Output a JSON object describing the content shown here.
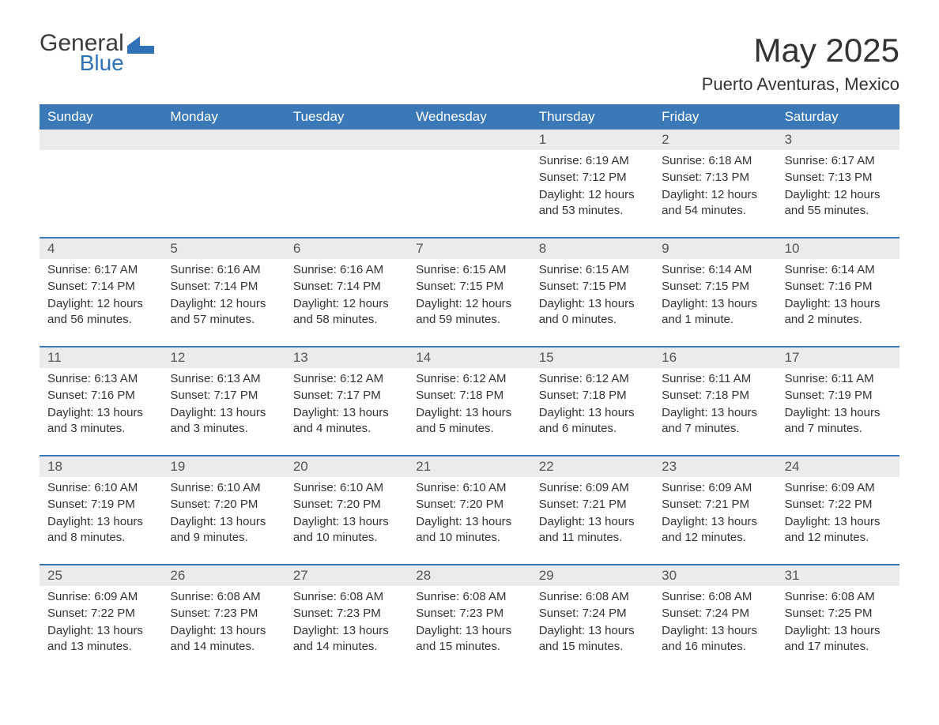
{
  "brand": {
    "word1": "General",
    "word2": "Blue",
    "word1_color": "#3b3b3b",
    "word2_color": "#2f72b8",
    "shape_color": "#2f72b8"
  },
  "title": "May 2025",
  "location": "Puerto Aventuras, Mexico",
  "colors": {
    "header_bg": "#3b78b8",
    "header_text": "#ffffff",
    "daynum_bg": "#ebebeb",
    "daynum_text": "#555555",
    "body_text": "#333333",
    "divider": "#3b78b8",
    "page_bg": "#ffffff"
  },
  "typography": {
    "title_fontsize": 42,
    "location_fontsize": 22,
    "weekday_fontsize": 17,
    "daynum_fontsize": 17,
    "detail_fontsize": 15,
    "font_family": "Arial"
  },
  "layout": {
    "type": "calendar",
    "columns": 7,
    "rows": 5
  },
  "weekdays": [
    "Sunday",
    "Monday",
    "Tuesday",
    "Wednesday",
    "Thursday",
    "Friday",
    "Saturday"
  ],
  "weeks": [
    [
      null,
      null,
      null,
      null,
      {
        "n": "1",
        "sunrise": "Sunrise: 6:19 AM",
        "sunset": "Sunset: 7:12 PM",
        "daylight": "Daylight: 12 hours and 53 minutes."
      },
      {
        "n": "2",
        "sunrise": "Sunrise: 6:18 AM",
        "sunset": "Sunset: 7:13 PM",
        "daylight": "Daylight: 12 hours and 54 minutes."
      },
      {
        "n": "3",
        "sunrise": "Sunrise: 6:17 AM",
        "sunset": "Sunset: 7:13 PM",
        "daylight": "Daylight: 12 hours and 55 minutes."
      }
    ],
    [
      {
        "n": "4",
        "sunrise": "Sunrise: 6:17 AM",
        "sunset": "Sunset: 7:14 PM",
        "daylight": "Daylight: 12 hours and 56 minutes."
      },
      {
        "n": "5",
        "sunrise": "Sunrise: 6:16 AM",
        "sunset": "Sunset: 7:14 PM",
        "daylight": "Daylight: 12 hours and 57 minutes."
      },
      {
        "n": "6",
        "sunrise": "Sunrise: 6:16 AM",
        "sunset": "Sunset: 7:14 PM",
        "daylight": "Daylight: 12 hours and 58 minutes."
      },
      {
        "n": "7",
        "sunrise": "Sunrise: 6:15 AM",
        "sunset": "Sunset: 7:15 PM",
        "daylight": "Daylight: 12 hours and 59 minutes."
      },
      {
        "n": "8",
        "sunrise": "Sunrise: 6:15 AM",
        "sunset": "Sunset: 7:15 PM",
        "daylight": "Daylight: 13 hours and 0 minutes."
      },
      {
        "n": "9",
        "sunrise": "Sunrise: 6:14 AM",
        "sunset": "Sunset: 7:15 PM",
        "daylight": "Daylight: 13 hours and 1 minute."
      },
      {
        "n": "10",
        "sunrise": "Sunrise: 6:14 AM",
        "sunset": "Sunset: 7:16 PM",
        "daylight": "Daylight: 13 hours and 2 minutes."
      }
    ],
    [
      {
        "n": "11",
        "sunrise": "Sunrise: 6:13 AM",
        "sunset": "Sunset: 7:16 PM",
        "daylight": "Daylight: 13 hours and 3 minutes."
      },
      {
        "n": "12",
        "sunrise": "Sunrise: 6:13 AM",
        "sunset": "Sunset: 7:17 PM",
        "daylight": "Daylight: 13 hours and 3 minutes."
      },
      {
        "n": "13",
        "sunrise": "Sunrise: 6:12 AM",
        "sunset": "Sunset: 7:17 PM",
        "daylight": "Daylight: 13 hours and 4 minutes."
      },
      {
        "n": "14",
        "sunrise": "Sunrise: 6:12 AM",
        "sunset": "Sunset: 7:18 PM",
        "daylight": "Daylight: 13 hours and 5 minutes."
      },
      {
        "n": "15",
        "sunrise": "Sunrise: 6:12 AM",
        "sunset": "Sunset: 7:18 PM",
        "daylight": "Daylight: 13 hours and 6 minutes."
      },
      {
        "n": "16",
        "sunrise": "Sunrise: 6:11 AM",
        "sunset": "Sunset: 7:18 PM",
        "daylight": "Daylight: 13 hours and 7 minutes."
      },
      {
        "n": "17",
        "sunrise": "Sunrise: 6:11 AM",
        "sunset": "Sunset: 7:19 PM",
        "daylight": "Daylight: 13 hours and 7 minutes."
      }
    ],
    [
      {
        "n": "18",
        "sunrise": "Sunrise: 6:10 AM",
        "sunset": "Sunset: 7:19 PM",
        "daylight": "Daylight: 13 hours and 8 minutes."
      },
      {
        "n": "19",
        "sunrise": "Sunrise: 6:10 AM",
        "sunset": "Sunset: 7:20 PM",
        "daylight": "Daylight: 13 hours and 9 minutes."
      },
      {
        "n": "20",
        "sunrise": "Sunrise: 6:10 AM",
        "sunset": "Sunset: 7:20 PM",
        "daylight": "Daylight: 13 hours and 10 minutes."
      },
      {
        "n": "21",
        "sunrise": "Sunrise: 6:10 AM",
        "sunset": "Sunset: 7:20 PM",
        "daylight": "Daylight: 13 hours and 10 minutes."
      },
      {
        "n": "22",
        "sunrise": "Sunrise: 6:09 AM",
        "sunset": "Sunset: 7:21 PM",
        "daylight": "Daylight: 13 hours and 11 minutes."
      },
      {
        "n": "23",
        "sunrise": "Sunrise: 6:09 AM",
        "sunset": "Sunset: 7:21 PM",
        "daylight": "Daylight: 13 hours and 12 minutes."
      },
      {
        "n": "24",
        "sunrise": "Sunrise: 6:09 AM",
        "sunset": "Sunset: 7:22 PM",
        "daylight": "Daylight: 13 hours and 12 minutes."
      }
    ],
    [
      {
        "n": "25",
        "sunrise": "Sunrise: 6:09 AM",
        "sunset": "Sunset: 7:22 PM",
        "daylight": "Daylight: 13 hours and 13 minutes."
      },
      {
        "n": "26",
        "sunrise": "Sunrise: 6:08 AM",
        "sunset": "Sunset: 7:23 PM",
        "daylight": "Daylight: 13 hours and 14 minutes."
      },
      {
        "n": "27",
        "sunrise": "Sunrise: 6:08 AM",
        "sunset": "Sunset: 7:23 PM",
        "daylight": "Daylight: 13 hours and 14 minutes."
      },
      {
        "n": "28",
        "sunrise": "Sunrise: 6:08 AM",
        "sunset": "Sunset: 7:23 PM",
        "daylight": "Daylight: 13 hours and 15 minutes."
      },
      {
        "n": "29",
        "sunrise": "Sunrise: 6:08 AM",
        "sunset": "Sunset: 7:24 PM",
        "daylight": "Daylight: 13 hours and 15 minutes."
      },
      {
        "n": "30",
        "sunrise": "Sunrise: 6:08 AM",
        "sunset": "Sunset: 7:24 PM",
        "daylight": "Daylight: 13 hours and 16 minutes."
      },
      {
        "n": "31",
        "sunrise": "Sunrise: 6:08 AM",
        "sunset": "Sunset: 7:25 PM",
        "daylight": "Daylight: 13 hours and 17 minutes."
      }
    ]
  ]
}
